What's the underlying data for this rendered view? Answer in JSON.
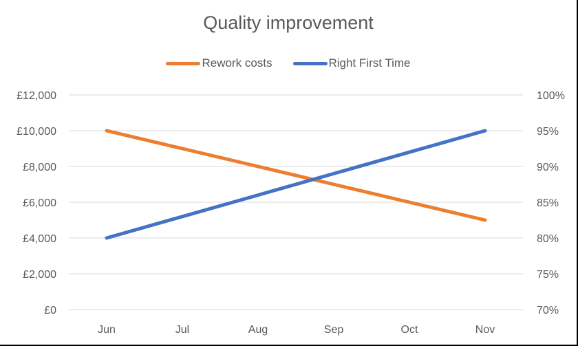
{
  "chart": {
    "title": "Quality improvement",
    "legend": [
      {
        "label": "Rework costs",
        "color": "#ED7D31"
      },
      {
        "label": "Right First Time",
        "color": "#4472C4"
      }
    ]
  },
  "chart_data": {
    "type": "line",
    "title": "Quality improvement",
    "categories": [
      "Jun",
      "Jul",
      "Aug",
      "Sep",
      "Oct",
      "Nov"
    ],
    "series": [
      {
        "name": "Rework costs",
        "axis": "left",
        "color": "#ED7D31",
        "values": [
          10000,
          9000,
          8000,
          7000,
          6000,
          5000
        ]
      },
      {
        "name": "Right First Time",
        "axis": "right",
        "color": "#4472C4",
        "values": [
          0.8,
          0.83,
          0.86,
          0.89,
          0.92,
          0.95
        ]
      }
    ],
    "xlabel": "",
    "ylabel_left": "",
    "ylabel_right": "",
    "ylim_left": [
      0,
      12000
    ],
    "ylim_right": [
      0.7,
      1.0
    ],
    "left_ticks": [
      "£0",
      "£2,000",
      "£4,000",
      "£6,000",
      "£8,000",
      "£10,000",
      "£12,000"
    ],
    "right_ticks": [
      "70%",
      "75%",
      "80%",
      "85%",
      "90%",
      "95%",
      "100%"
    ],
    "grid": true,
    "legend_position": "top"
  }
}
